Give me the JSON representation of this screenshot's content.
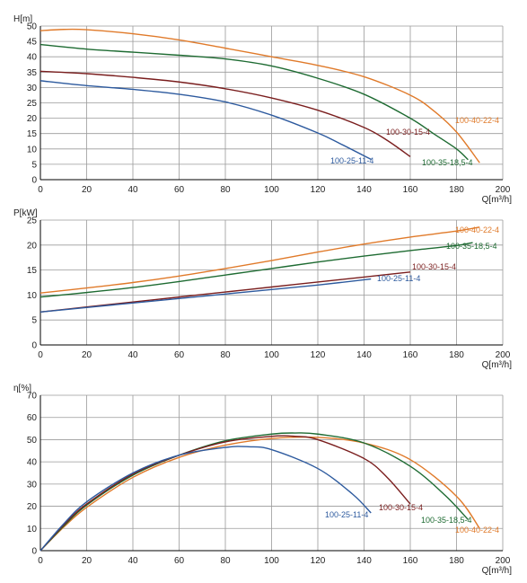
{
  "chart_data": [
    {
      "type": "line",
      "ylabel": "H[m]",
      "xlabel": "Q[m³/h]",
      "xlim": [
        0,
        200
      ],
      "ylim": [
        0,
        50
      ],
      "xticks": [
        0,
        20,
        40,
        60,
        80,
        100,
        120,
        140,
        160,
        180,
        200
      ],
      "yticks": [
        0,
        5,
        10,
        15,
        20,
        25,
        30,
        35,
        40,
        45,
        50
      ],
      "grid": true,
      "series": [
        {
          "name": "100-40-22-4",
          "color": "#e07a2a",
          "x": [
            0,
            10,
            20,
            40,
            60,
            80,
            100,
            120,
            140,
            160,
            170,
            180,
            190
          ],
          "y": [
            48.5,
            48.9,
            48.8,
            47.5,
            45.5,
            42.8,
            40.0,
            37.2,
            33.5,
            27.5,
            22.5,
            15.5,
            5.5
          ]
        },
        {
          "name": "100-35-18,5-4",
          "color": "#1e6b32",
          "x": [
            0,
            20,
            40,
            60,
            80,
            100,
            120,
            140,
            160,
            170,
            180,
            185
          ],
          "y": [
            44.0,
            42.5,
            41.5,
            40.5,
            39.3,
            37.0,
            33.0,
            27.8,
            20.0,
            15.0,
            10.0,
            6.5
          ]
        },
        {
          "name": "100-30-15-4",
          "color": "#7a1e1e",
          "x": [
            0,
            20,
            40,
            60,
            80,
            100,
            120,
            140,
            150,
            160
          ],
          "y": [
            35.3,
            34.5,
            33.3,
            31.8,
            29.6,
            26.6,
            22.6,
            17.0,
            12.8,
            7.5
          ]
        },
        {
          "name": "100-25-11-4",
          "color": "#2d5a9e",
          "x": [
            0,
            20,
            40,
            60,
            80,
            100,
            120,
            130,
            143
          ],
          "y": [
            32.2,
            30.6,
            29.4,
            27.8,
            25.3,
            21.0,
            15.2,
            11.6,
            6.6
          ]
        }
      ]
    },
    {
      "type": "line",
      "ylabel": "P[kW]",
      "xlabel": "Q[m³/h]",
      "xlim": [
        0,
        200
      ],
      "ylim": [
        0,
        25
      ],
      "xticks": [
        0,
        20,
        40,
        60,
        80,
        100,
        120,
        140,
        160,
        180,
        200
      ],
      "yticks": [
        0,
        5,
        10,
        15,
        20,
        25
      ],
      "grid": true,
      "series": [
        {
          "name": "100-40-22-4",
          "color": "#e07a2a",
          "x": [
            0,
            20,
            40,
            60,
            80,
            100,
            120,
            140,
            160,
            180,
            190
          ],
          "y": [
            10.4,
            11.4,
            12.5,
            13.8,
            15.3,
            16.9,
            18.6,
            20.2,
            21.6,
            22.8,
            23.6
          ]
        },
        {
          "name": "100-35-18,5-4",
          "color": "#1e6b32",
          "x": [
            0,
            20,
            40,
            60,
            80,
            100,
            120,
            140,
            160,
            180,
            187
          ],
          "y": [
            9.6,
            10.5,
            11.5,
            12.7,
            14.0,
            15.3,
            16.6,
            17.8,
            18.9,
            19.9,
            20.5
          ]
        },
        {
          "name": "100-30-15-4",
          "color": "#7a1e1e",
          "x": [
            0,
            20,
            40,
            60,
            80,
            100,
            120,
            140,
            160
          ],
          "y": [
            6.6,
            7.6,
            8.6,
            9.6,
            10.6,
            11.6,
            12.6,
            13.6,
            14.6
          ]
        },
        {
          "name": "100-25-11-4",
          "color": "#2d5a9e",
          "x": [
            0,
            20,
            40,
            60,
            80,
            100,
            120,
            143
          ],
          "y": [
            6.6,
            7.5,
            8.4,
            9.3,
            10.2,
            11.1,
            12.0,
            13.2
          ]
        }
      ]
    },
    {
      "type": "line",
      "ylabel": "η[%]",
      "xlabel": "Q[m³/h]",
      "xlim": [
        0,
        200
      ],
      "ylim": [
        0,
        70
      ],
      "xticks": [
        0,
        20,
        40,
        60,
        80,
        100,
        120,
        140,
        160,
        180,
        200
      ],
      "yticks": [
        0,
        10,
        20,
        30,
        40,
        50,
        60,
        70
      ],
      "grid": true,
      "series": [
        {
          "name": "100-40-22-4",
          "color": "#e07a2a",
          "x": [
            0,
            10,
            20,
            40,
            60,
            80,
            100,
            120,
            140,
            160,
            180,
            190
          ],
          "y": [
            0,
            10.5,
            19.5,
            33,
            42,
            47.5,
            50.5,
            51,
            48.5,
            41,
            24.5,
            10
          ]
        },
        {
          "name": "100-35-18,5-4",
          "color": "#1e6b32",
          "x": [
            0,
            10,
            20,
            40,
            60,
            80,
            100,
            110,
            120,
            140,
            160,
            175,
            185
          ],
          "y": [
            0,
            11,
            20.5,
            34,
            43,
            49.5,
            52.5,
            53,
            52.5,
            48.5,
            38,
            25,
            14
          ]
        },
        {
          "name": "100-30-15-4",
          "color": "#7a1e1e",
          "x": [
            0,
            10,
            20,
            40,
            60,
            80,
            100,
            110,
            120,
            140,
            150,
            160
          ],
          "y": [
            0,
            11.5,
            21,
            34.5,
            43,
            49,
            51.5,
            51.5,
            50,
            41.5,
            33,
            21
          ]
        },
        {
          "name": "100-25-11-4",
          "color": "#2d5a9e",
          "x": [
            0,
            10,
            20,
            40,
            60,
            80,
            90,
            100,
            120,
            135,
            143
          ],
          "y": [
            0,
            12,
            22,
            35,
            43,
            46.5,
            46.8,
            45.5,
            37,
            25.5,
            17
          ]
        }
      ]
    }
  ]
}
